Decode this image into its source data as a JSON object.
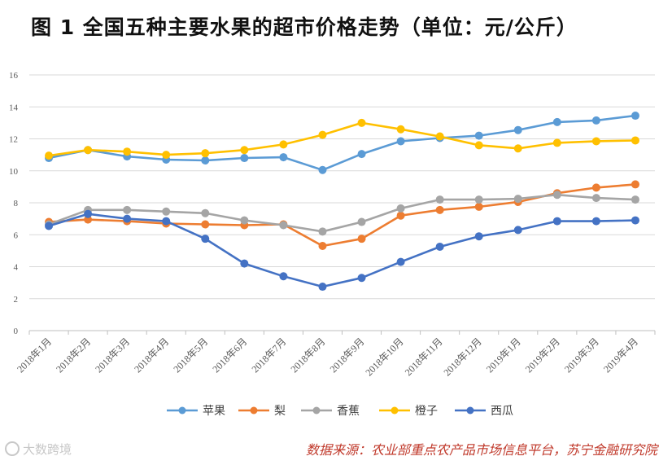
{
  "title": "图 1 全国五种主要水果的超市价格走势（单位：元/公斤）",
  "source": "数据来源：农业部重点农产品市场信息平台，苏宁金融研究院",
  "watermark": "大数跨境",
  "chart_data": {
    "type": "line",
    "title": "全国五种主要水果的超市价格走势（单位：元/公斤）",
    "xlabel": "",
    "ylabel": "",
    "ylim": [
      0,
      16
    ],
    "yticks": [
      0,
      2,
      4,
      6,
      8,
      10,
      12,
      14,
      16
    ],
    "grid": true,
    "legend_position": "bottom",
    "categories": [
      "2018年1月",
      "2018年2月",
      "2018年3月",
      "2018年4月",
      "2018年5月",
      "2018年6月",
      "2018年7月",
      "2018年8月",
      "2018年9月",
      "2018年10月",
      "2018年11月",
      "2018年12月",
      "2019年1月",
      "2019年2月",
      "2019年3月",
      "2019年4月"
    ],
    "series": [
      {
        "name": "苹果",
        "color": "#5b9bd5",
        "values": [
          10.8,
          11.3,
          10.9,
          10.7,
          10.65,
          10.8,
          10.85,
          10.05,
          11.05,
          11.85,
          12.05,
          12.2,
          12.55,
          13.05,
          13.15,
          13.45
        ]
      },
      {
        "name": "梨",
        "color": "#ed7d31",
        "values": [
          6.8,
          6.95,
          6.85,
          6.7,
          6.65,
          6.6,
          6.65,
          5.3,
          5.75,
          7.2,
          7.55,
          7.75,
          8.05,
          8.6,
          8.95,
          9.15
        ]
      },
      {
        "name": "香蕉",
        "color": "#a5a5a5",
        "values": [
          6.65,
          7.55,
          7.55,
          7.45,
          7.35,
          6.9,
          6.6,
          6.2,
          6.8,
          7.65,
          8.2,
          8.2,
          8.25,
          8.5,
          8.3,
          8.2
        ]
      },
      {
        "name": "橙子",
        "color": "#ffc000",
        "values": [
          10.95,
          11.3,
          11.2,
          11.0,
          11.1,
          11.3,
          11.65,
          12.25,
          13.0,
          12.6,
          12.15,
          11.6,
          11.4,
          11.75,
          11.85,
          11.9
        ]
      },
      {
        "name": "西瓜",
        "color": "#4472c4",
        "values": [
          6.55,
          7.3,
          7.0,
          6.85,
          5.75,
          4.2,
          3.4,
          2.75,
          3.3,
          4.3,
          5.25,
          5.9,
          6.3,
          6.85,
          6.85,
          6.9
        ]
      }
    ]
  }
}
